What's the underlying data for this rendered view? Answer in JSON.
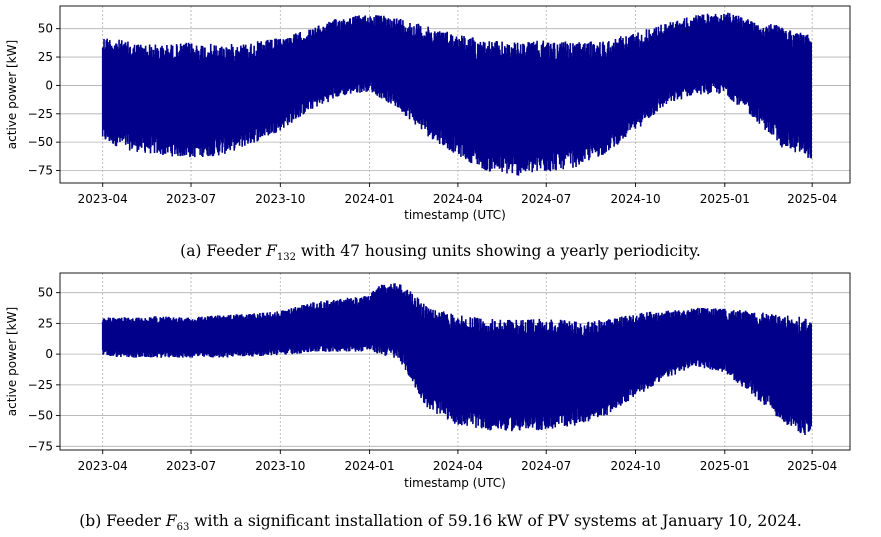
{
  "chart_data": [
    {
      "type": "line",
      "panel": "a",
      "xlabel": "timestamp (UTC)",
      "ylabel": "active power [kW]",
      "x_ticks": [
        "2023-04",
        "2023-07",
        "2023-10",
        "2024-01",
        "2024-04",
        "2024-07",
        "2024-10",
        "2025-01",
        "2025-04"
      ],
      "y_ticks": [
        50,
        25,
        0,
        -25,
        -50,
        -75
      ],
      "xlim": [
        "2023-02-16",
        "2025-05-10"
      ],
      "ylim": [
        -86,
        70
      ],
      "grid": true,
      "color": "#00008b",
      "series": [
        {
          "x": [
            "2023-04-01",
            "2023-05-01",
            "2023-06-01",
            "2023-07-01",
            "2023-08-01",
            "2023-09-01",
            "2023-10-01",
            "2023-11-01",
            "2023-12-01",
            "2024-01-01",
            "2024-02-01",
            "2024-03-01",
            "2024-04-01",
            "2024-05-01",
            "2024-06-01",
            "2024-07-01",
            "2024-08-01",
            "2024-09-01",
            "2024-10-01",
            "2024-11-01",
            "2024-12-01",
            "2025-01-01",
            "2025-02-01",
            "2025-03-01",
            "2025-03-31"
          ],
          "upper": [
            44,
            38,
            36,
            38,
            36,
            38,
            42,
            50,
            60,
            63,
            60,
            52,
            46,
            40,
            38,
            40,
            38,
            40,
            47,
            55,
            62,
            65,
            58,
            52,
            45
          ],
          "lower": [
            -50,
            -58,
            -62,
            -64,
            -62,
            -52,
            -40,
            -22,
            -10,
            -5,
            -22,
            -45,
            -62,
            -76,
            -80,
            -77,
            -72,
            -60,
            -40,
            -18,
            -8,
            -8,
            -30,
            -55,
            -65
          ]
        }
      ]
    },
    {
      "type": "line",
      "panel": "b",
      "xlabel": "timestamp (UTC)",
      "ylabel": "active power [kW]",
      "x_ticks": [
        "2023-04",
        "2023-07",
        "2023-10",
        "2024-01",
        "2024-04",
        "2024-07",
        "2024-10",
        "2025-01",
        "2025-04"
      ],
      "y_ticks": [
        50,
        25,
        0,
        -25,
        -50,
        -75
      ],
      "xlim": [
        "2023-02-16",
        "2025-05-10"
      ],
      "ylim": [
        -78,
        66
      ],
      "grid": true,
      "color": "#00008b",
      "series": [
        {
          "x": [
            "2023-04-01",
            "2023-05-01",
            "2023-06-01",
            "2023-07-01",
            "2023-08-01",
            "2023-09-01",
            "2023-10-01",
            "2023-11-01",
            "2023-12-01",
            "2024-01-01",
            "2024-01-10",
            "2024-02-01",
            "2024-02-15",
            "2024-03-01",
            "2024-04-01",
            "2024-05-01",
            "2024-06-01",
            "2024-07-01",
            "2024-08-01",
            "2024-09-01",
            "2024-10-01",
            "2024-11-01",
            "2024-12-01",
            "2025-01-01",
            "2025-02-01",
            "2025-03-01",
            "2025-03-31"
          ],
          "upper": [
            30,
            30,
            31,
            30,
            32,
            33,
            35,
            42,
            45,
            48,
            57,
            58,
            50,
            38,
            32,
            29,
            28,
            29,
            27,
            28,
            33,
            36,
            38,
            37,
            35,
            32,
            30
          ],
          "lower": [
            -2,
            -3,
            -3,
            -3,
            -3,
            -2,
            -1,
            1,
            2,
            2,
            0,
            -5,
            -25,
            -45,
            -58,
            -62,
            -63,
            -62,
            -58,
            -50,
            -35,
            -20,
            -10,
            -15,
            -35,
            -55,
            -70
          ]
        }
      ]
    }
  ],
  "captions": {
    "a": {
      "prefix": "(a) Feeder ",
      "var": "F",
      "sub": "132",
      "suffix": " with 47 housing units showing a yearly periodicity."
    },
    "b": {
      "prefix": "(b) Feeder ",
      "var": "F",
      "sub": "63",
      "suffix": " with a significant installation of 59.16 kW of PV systems at January 10, 2024."
    }
  }
}
